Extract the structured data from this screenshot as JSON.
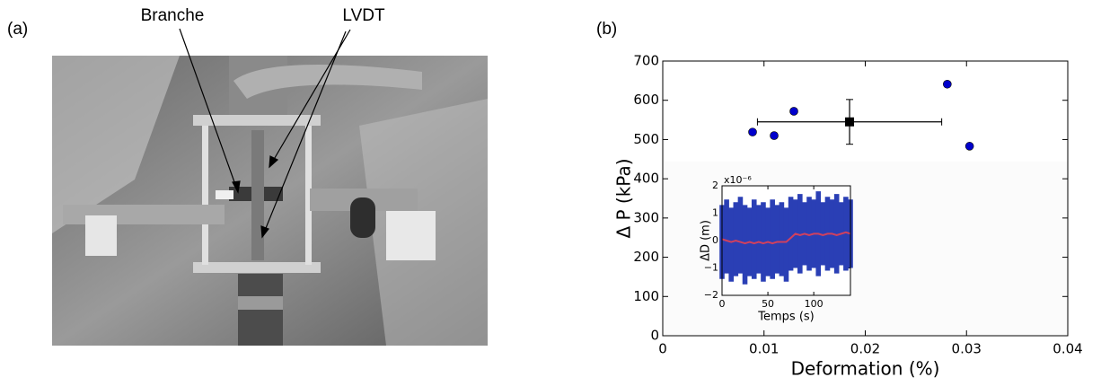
{
  "panels": [
    {
      "label": "(a)",
      "annotations": [
        "Branche",
        "LVDT"
      ]
    },
    {
      "label": "(b)"
    }
  ],
  "chart_data": [
    {
      "type": "scatter",
      "xlabel": "Deformation (%)",
      "ylabel": "Δ P (kPa)",
      "xlim": [
        0,
        0.04
      ],
      "ylim": [
        0,
        700
      ],
      "xticks": [
        0,
        0.01,
        0.02,
        0.03,
        0.04
      ],
      "yticks": [
        0,
        100,
        200,
        300,
        400,
        500,
        600,
        700
      ],
      "series": [
        {
          "color": "#0000cc",
          "marker": "circle",
          "x": [
            0.00887,
            0.011,
            0.01295,
            0.0281,
            0.0303
          ],
          "values": [
            519,
            510,
            572,
            641,
            483
          ]
        },
        {
          "color": "#000000",
          "marker": "square",
          "x": [
            0.01845
          ],
          "values": [
            545
          ],
          "xerr": [
            0.0091
          ],
          "yerr": [
            57
          ]
        }
      ]
    },
    {
      "type": "line",
      "xlabel": "Temps (s)",
      "ylabel": "ΔD (m)",
      "y_offset_label": "x10⁻⁶",
      "xlim": [
        0,
        140
      ],
      "ylim": [
        -2e-06,
        2e-06
      ],
      "xticks": [
        0,
        50,
        100
      ],
      "yticks": [
        {
          "value": -2e-06,
          "label": "−2"
        },
        {
          "value": -1e-06,
          "label": "−1"
        },
        {
          "value": 0,
          "label": "0"
        },
        {
          "value": 1e-06,
          "label": "1"
        },
        {
          "value": 2e-06,
          "label": "2"
        }
      ],
      "x": [
        0,
        5,
        10,
        15,
        20,
        25,
        30,
        35,
        40,
        45,
        50,
        55,
        60,
        65,
        70,
        75,
        80,
        85,
        90,
        95,
        100,
        105,
        110,
        115,
        120,
        125,
        130,
        135,
        140
      ],
      "series": [
        {
          "color": "#2a3fb5",
          "lower": [
            -1.4e-06,
            -1.2e-06,
            -1.5e-06,
            -1.3e-06,
            -1.2e-06,
            -1.6e-06,
            -1.3e-06,
            -1.4e-06,
            -1.2e-06,
            -1.5e-06,
            -1.3e-06,
            -1.4e-06,
            -1.2e-06,
            -1.3e-06,
            -1.5e-06,
            -1.1e-06,
            -1e-06,
            -1.2e-06,
            -9e-07,
            -1.1e-06,
            -1e-06,
            -1.3e-06,
            -9e-07,
            -1.1e-06,
            -1e-06,
            -1.2e-06,
            -9e-07,
            -1.1e-06,
            -1e-06
          ],
          "upper": [
            1.3e-06,
            1.5e-06,
            1.2e-06,
            1.4e-06,
            1.6e-06,
            1.3e-06,
            1.2e-06,
            1.5e-06,
            1.3e-06,
            1.4e-06,
            1.2e-06,
            1.5e-06,
            1.3e-06,
            1.4e-06,
            1.2e-06,
            1.6e-06,
            1.5e-06,
            1.7e-06,
            1.4e-06,
            1.6e-06,
            1.5e-06,
            1.8e-06,
            1.4e-06,
            1.6e-06,
            1.5e-06,
            1.7e-06,
            1.4e-06,
            1.6e-06,
            1.5e-06
          ]
        },
        {
          "color": "#d0405e",
          "values": [
            5e-08,
            0,
            -5e-08,
            0,
            -5e-08,
            -1e-07,
            -5e-08,
            -1e-07,
            -5e-08,
            -1e-07,
            -5e-08,
            -1e-07,
            -5e-08,
            -5e-08,
            -5e-08,
            1e-07,
            2.5e-07,
            2e-07,
            2.5e-07,
            2e-07,
            2.5e-07,
            2.5e-07,
            2e-07,
            2.5e-07,
            2.5e-07,
            2e-07,
            2.5e-07,
            3e-07,
            2.5e-07
          ]
        }
      ]
    }
  ]
}
